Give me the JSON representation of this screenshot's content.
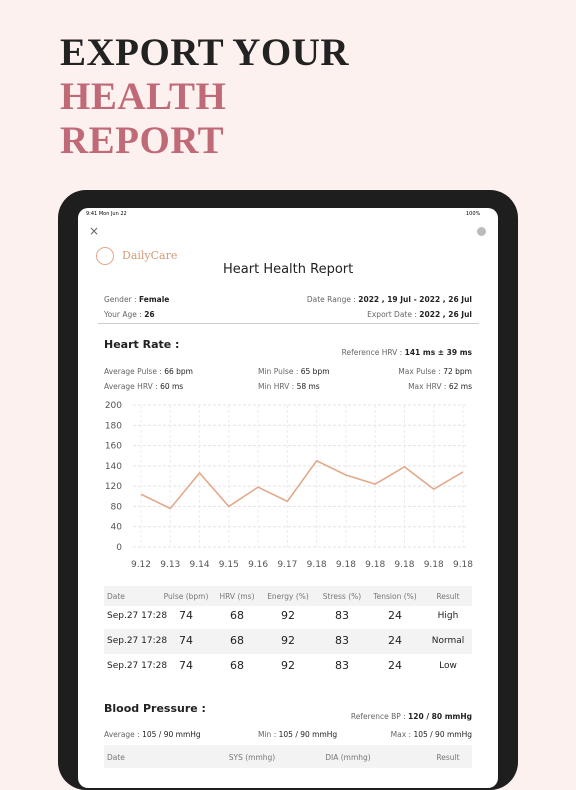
{
  "headline": {
    "line1": "EXPORT YOUR",
    "line2": "HEALTH",
    "line3": "REPORT"
  },
  "status": {
    "time": "9:41  Mon Jun 22",
    "battery": "100%"
  },
  "app": {
    "brand": "DailyCare",
    "title": "Heart Health Report"
  },
  "info": {
    "gender_label": "Gender :",
    "gender": "Female",
    "age_label": "Your Age :",
    "age": "26",
    "range_label": "Date Range :",
    "range": "2022 , 19 Jul - 2022 , 26 Jul",
    "export_label": "Export Date :",
    "export": "2022 , 26 Jul"
  },
  "heart": {
    "title": "Heart Rate :",
    "ref_label": "Reference HRV :",
    "ref": "141 ms ± 39 ms",
    "stats": [
      [
        "Average Pulse :",
        "66 bpm"
      ],
      [
        "Min Pulse :",
        "65 bpm"
      ],
      [
        "Max Pulse :",
        "72 bpm"
      ],
      [
        "Average HRV :",
        "60 ms"
      ],
      [
        "Min HRV :",
        "58 ms"
      ],
      [
        "Max HRV :",
        "62 ms"
      ]
    ]
  },
  "chart_data": {
    "type": "line",
    "categories": [
      "9.12",
      "9.13",
      "9.14",
      "9.15",
      "9.16",
      "9.17",
      "9.18",
      "9.18",
      "9.18",
      "9.18",
      "9.18",
      "9.18"
    ],
    "values": [
      104,
      76,
      133,
      80,
      118,
      90,
      145,
      131,
      122,
      139,
      114,
      134
    ],
    "color": "#e2a98b",
    "yticks": [
      0,
      40,
      80,
      120,
      140,
      160,
      180,
      200
    ],
    "ylim": [
      0,
      200
    ],
    "grid": true
  },
  "table": {
    "header": [
      "Date",
      "Pulse (bpm)",
      "HRV (ms)",
      "Energy (%)",
      "Stress (%)",
      "Tension (%)",
      "Result"
    ],
    "rows": [
      [
        "Sep.27 17:28",
        "74",
        "68",
        "92",
        "83",
        "24",
        "High"
      ],
      [
        "Sep.27 17:28",
        "74",
        "68",
        "92",
        "83",
        "24",
        "Normal"
      ],
      [
        "Sep.27 17:28",
        "74",
        "68",
        "92",
        "83",
        "24",
        "Low"
      ]
    ]
  },
  "bp": {
    "title": "Blood Pressure :",
    "ref_label": "Reference BP :",
    "ref": "120 / 80 mmHg",
    "stats": [
      [
        "Average :",
        "105 / 90 mmHg"
      ],
      [
        "Min :",
        "105 / 90 mmHg"
      ],
      [
        "Max :",
        "105 / 90 mmHg"
      ]
    ],
    "header": [
      "Date",
      "SYS (mmhg)",
      "DIA (mmhg)",
      "Result"
    ]
  }
}
